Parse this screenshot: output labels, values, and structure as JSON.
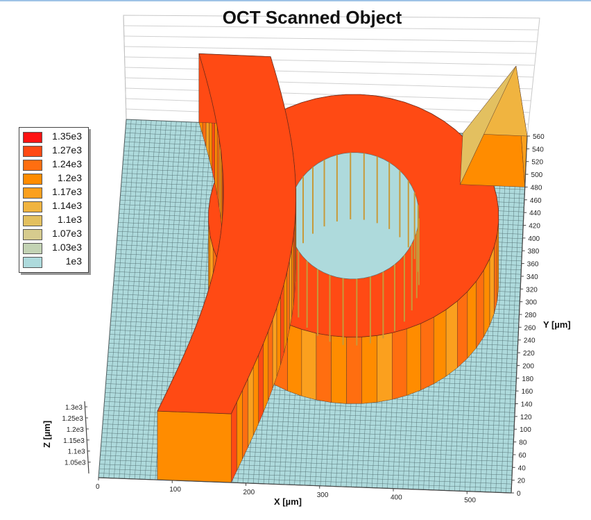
{
  "chart_data": {
    "type": "surface-3d",
    "title": "OCT Scanned Object",
    "xlabel": "X [µm]",
    "ylabel": "Y [µm]",
    "zlabel": "Z [µm]",
    "x_ticks": [
      "0",
      "100",
      "200",
      "300",
      "400",
      "500"
    ],
    "y_ticks": [
      "0",
      "20",
      "40",
      "60",
      "80",
      "100",
      "120",
      "140",
      "160",
      "180",
      "200",
      "220",
      "240",
      "260",
      "280",
      "300",
      "320",
      "340",
      "360",
      "380",
      "400",
      "420",
      "440",
      "460",
      "480",
      "500",
      "520",
      "540",
      "560"
    ],
    "z_ticks": [
      "1.05e3",
      "1.1e3",
      "1.15e3",
      "1.2e3",
      "1.25e3",
      "1.3e3"
    ],
    "xlim": [
      0,
      560
    ],
    "ylim": [
      0,
      560
    ],
    "zlim": [
      1000,
      1350
    ],
    "legend_position": "left",
    "legend": [
      {
        "label": "1.35e3",
        "value": 1350,
        "color": "#ff1414"
      },
      {
        "label": "1.27e3",
        "value": 1270,
        "color": "#ff4a14"
      },
      {
        "label": "1.24e3",
        "value": 1240,
        "color": "#ff6e10"
      },
      {
        "label": "1.2e3",
        "value": 1200,
        "color": "#ff8c00"
      },
      {
        "label": "1.17e3",
        "value": 1170,
        "color": "#fba01e"
      },
      {
        "label": "1.14e3",
        "value": 1140,
        "color": "#f0b440"
      },
      {
        "label": "1.1e3",
        "value": 1100,
        "color": "#e3c060"
      },
      {
        "label": "1.07e3",
        "value": 1070,
        "color": "#d6cb8e"
      },
      {
        "label": "1.03e3",
        "value": 1030,
        "color": "#c3d3b4"
      },
      {
        "label": "1e3",
        "value": 1000,
        "color": "#aedadc"
      }
    ],
    "surface_features": [
      {
        "name": "left-pillar",
        "x": [
          40,
          230
        ],
        "y": [
          0,
          560
        ],
        "z": 1330
      },
      {
        "name": "ring",
        "center": [
          330,
          320
        ],
        "radius": [
          90,
          200
        ],
        "z": 1320
      },
      {
        "name": "right-spike",
        "x": [
          470,
          560
        ],
        "y": [
          480,
          560
        ],
        "z": 1200
      }
    ]
  }
}
